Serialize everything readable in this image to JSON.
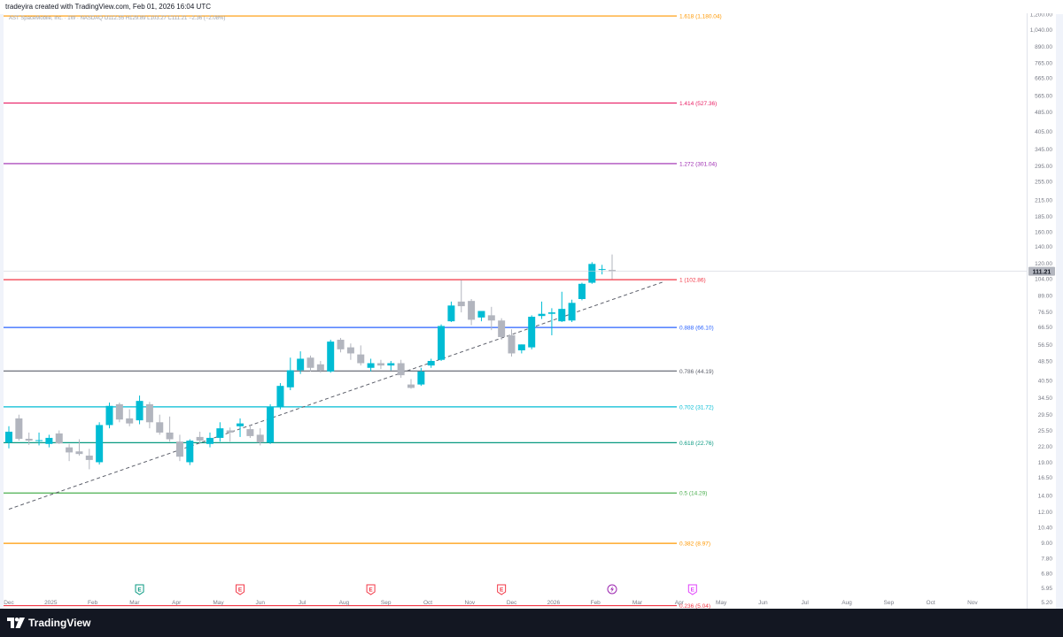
{
  "header": {
    "credit": "tradeyira created with TradingView.com, Feb 01, 2026 16:04 UTC",
    "symbol_line": "AST SpaceMobile, Inc. · 1W · NASDAQ  O112.55  H129.89  L103.27  C111.21  −2.36 (−2.08%)"
  },
  "footer": {
    "brand": "TradingView",
    "logo_icon": "tradingview-logo-icon"
  },
  "chart_data": {
    "type": "candlestick",
    "title": "",
    "y_scale": "log",
    "ylim": [
      4.9,
      1210
    ],
    "y_ticks": [
      "1,200.00",
      "1,040.00",
      "890.00",
      "765.00",
      "665.00",
      "565.00",
      "485.00",
      "405.00",
      "345.00",
      "295.00",
      "255.00",
      "215.00",
      "185.00",
      "160.00",
      "140.00",
      "120.00",
      "104.00",
      "89.00",
      "76.50",
      "66.50",
      "56.50",
      "48.50",
      "40.50",
      "34.50",
      "29.50",
      "25.50",
      "22.00",
      "19.00",
      "16.50",
      "14.00",
      "12.00",
      "10.40",
      "9.00",
      "7.80",
      "6.80",
      "5.95",
      "5.20"
    ],
    "x_ticks": [
      "Dec",
      "2025",
      "Feb",
      "Mar",
      "Apr",
      "May",
      "Jun",
      "Jul",
      "Aug",
      "Sep",
      "Oct",
      "Nov",
      "Dec",
      "2026",
      "Feb",
      "Mar",
      "Apr",
      "May",
      "Jun",
      "Jul",
      "Aug",
      "Sep",
      "Oct",
      "Nov"
    ],
    "last_price": {
      "value": 111.21,
      "label": "111.21"
    },
    "fib_levels": [
      {
        "label": "1.618 (1,180.04)",
        "value": 1180.04,
        "color": "#ff9800"
      },
      {
        "label": "1.414 (527.36)",
        "value": 527.36,
        "color": "#e91e63"
      },
      {
        "label": "1.272 (301.04)",
        "value": 301.04,
        "color": "#9c27b0"
      },
      {
        "label": "1 (102.86)",
        "value": 102.86,
        "color": "#f23645"
      },
      {
        "label": "0.888 (66.10)",
        "value": 66.1,
        "color": "#2962ff"
      },
      {
        "label": "0.786 (44.19)",
        "value": 44.19,
        "color": "#5d606b"
      },
      {
        "label": "0.702 (31.72)",
        "value": 31.72,
        "color": "#00bcd4"
      },
      {
        "label": "0.618 (22.76)",
        "value": 22.76,
        "color": "#089981"
      },
      {
        "label": "0.5 (14.29)",
        "value": 14.29,
        "color": "#4caf50"
      },
      {
        "label": "0.382 (8.97)",
        "value": 8.97,
        "color": "#ff9800"
      },
      {
        "label": "0.236 (5.04)",
        "value": 5.04,
        "color": "#f23645"
      }
    ],
    "trendline": {
      "from": {
        "week": 0,
        "value": 12.3
      },
      "to": {
        "week": 65,
        "value": 100.5
      },
      "style": "dashed"
    },
    "earnings_markers": [
      {
        "week": 13,
        "kind": "E",
        "color": "#089981"
      },
      {
        "week": 23,
        "kind": "E",
        "color": "#f23645"
      },
      {
        "week": 36,
        "kind": "E",
        "color": "#f23645"
      },
      {
        "week": 49,
        "kind": "E",
        "color": "#f23645"
      },
      {
        "week": 60,
        "kind": "lightning",
        "color": "#9c27b0"
      },
      {
        "week": 68,
        "kind": "E",
        "color": "#e040fb"
      }
    ],
    "up_color": "#00bcd4",
    "down_color": "#b2b5be",
    "candles": [
      {
        "o": 22.8,
        "h": 26.5,
        "l": 21.6,
        "c": 25.2
      },
      {
        "o": 28.5,
        "h": 29.5,
        "l": 23.2,
        "c": 23.6
      },
      {
        "o": 23.6,
        "h": 25.0,
        "l": 22.3,
        "c": 23.2
      },
      {
        "o": 23.3,
        "h": 25.0,
        "l": 22.2,
        "c": 23.3
      },
      {
        "o": 22.5,
        "h": 24.5,
        "l": 21.8,
        "c": 23.8
      },
      {
        "o": 24.8,
        "h": 25.5,
        "l": 22.5,
        "c": 22.6
      },
      {
        "o": 21.8,
        "h": 22.5,
        "l": 19.2,
        "c": 20.8
      },
      {
        "o": 21.0,
        "h": 23.5,
        "l": 20.2,
        "c": 20.5
      },
      {
        "o": 20.2,
        "h": 21.5,
        "l": 17.8,
        "c": 19.4
      },
      {
        "o": 19.0,
        "h": 27.5,
        "l": 18.6,
        "c": 26.8
      },
      {
        "o": 26.8,
        "h": 33.0,
        "l": 26.0,
        "c": 32.0
      },
      {
        "o": 32.5,
        "h": 33.0,
        "l": 27.5,
        "c": 28.2
      },
      {
        "o": 28.5,
        "h": 31.0,
        "l": 26.5,
        "c": 27.2
      },
      {
        "o": 28.0,
        "h": 35.2,
        "l": 27.0,
        "c": 33.5
      },
      {
        "o": 32.5,
        "h": 33.2,
        "l": 26.0,
        "c": 27.5
      },
      {
        "o": 27.5,
        "h": 29.5,
        "l": 24.5,
        "c": 25.0
      },
      {
        "o": 25.0,
        "h": 29.0,
        "l": 23.0,
        "c": 23.5
      },
      {
        "o": 23.0,
        "h": 24.5,
        "l": 19.2,
        "c": 20.0
      },
      {
        "o": 19.0,
        "h": 23.5,
        "l": 18.5,
        "c": 23.2
      },
      {
        "o": 24.0,
        "h": 25.2,
        "l": 22.5,
        "c": 23.2
      },
      {
        "o": 22.5,
        "h": 25.0,
        "l": 21.8,
        "c": 23.8
      },
      {
        "o": 23.8,
        "h": 27.5,
        "l": 23.0,
        "c": 26.0
      },
      {
        "o": 25.5,
        "h": 26.2,
        "l": 23.0,
        "c": 25.0
      },
      {
        "o": 26.5,
        "h": 28.5,
        "l": 24.0,
        "c": 27.2
      },
      {
        "o": 25.8,
        "h": 26.8,
        "l": 23.8,
        "c": 24.2
      },
      {
        "o": 24.5,
        "h": 26.0,
        "l": 22.2,
        "c": 22.8
      },
      {
        "o": 22.8,
        "h": 32.5,
        "l": 22.5,
        "c": 31.8
      },
      {
        "o": 31.8,
        "h": 39.5,
        "l": 31.0,
        "c": 38.5
      },
      {
        "o": 38.0,
        "h": 50.0,
        "l": 37.0,
        "c": 44.5
      },
      {
        "o": 44.5,
        "h": 53.0,
        "l": 43.0,
        "c": 49.5
      },
      {
        "o": 50.0,
        "h": 51.0,
        "l": 44.0,
        "c": 45.5
      },
      {
        "o": 47.0,
        "h": 48.5,
        "l": 43.5,
        "c": 44.5
      },
      {
        "o": 44.0,
        "h": 59.0,
        "l": 43.5,
        "c": 58.0
      },
      {
        "o": 59.0,
        "h": 60.0,
        "l": 52.5,
        "c": 54.0
      },
      {
        "o": 55.0,
        "h": 57.0,
        "l": 49.0,
        "c": 52.0
      },
      {
        "o": 51.5,
        "h": 56.0,
        "l": 46.5,
        "c": 47.5
      },
      {
        "o": 45.5,
        "h": 49.5,
        "l": 44.0,
        "c": 47.5
      },
      {
        "o": 47.5,
        "h": 49.0,
        "l": 45.0,
        "c": 46.5
      },
      {
        "o": 46.5,
        "h": 48.5,
        "l": 44.5,
        "c": 47.5
      },
      {
        "o": 47.5,
        "h": 49.0,
        "l": 41.5,
        "c": 42.5
      },
      {
        "o": 39.0,
        "h": 41.0,
        "l": 37.5,
        "c": 37.8
      },
      {
        "o": 39.0,
        "h": 45.5,
        "l": 38.5,
        "c": 44.0
      },
      {
        "o": 46.5,
        "h": 49.5,
        "l": 45.5,
        "c": 48.5
      },
      {
        "o": 49.0,
        "h": 68.0,
        "l": 48.5,
        "c": 67.0
      },
      {
        "o": 70.0,
        "h": 84.0,
        "l": 69.5,
        "c": 81.0
      },
      {
        "o": 84.0,
        "h": 102.5,
        "l": 76.0,
        "c": 80.5
      },
      {
        "o": 84.5,
        "h": 86.0,
        "l": 67.5,
        "c": 71.0
      },
      {
        "o": 72.5,
        "h": 77.0,
        "l": 70.0,
        "c": 77.0
      },
      {
        "o": 74.0,
        "h": 80.0,
        "l": 64.5,
        "c": 70.5
      },
      {
        "o": 70.5,
        "h": 72.0,
        "l": 59.0,
        "c": 60.5
      },
      {
        "o": 61.5,
        "h": 65.0,
        "l": 50.5,
        "c": 52.0
      },
      {
        "o": 53.5,
        "h": 56.5,
        "l": 52.0,
        "c": 56.5
      },
      {
        "o": 55.0,
        "h": 74.0,
        "l": 54.0,
        "c": 73.0
      },
      {
        "o": 73.5,
        "h": 84.0,
        "l": 71.5,
        "c": 75.0
      },
      {
        "o": 75.0,
        "h": 79.0,
        "l": 61.5,
        "c": 76.0
      },
      {
        "o": 70.0,
        "h": 92.0,
        "l": 69.5,
        "c": 78.5
      },
      {
        "o": 70.5,
        "h": 85.5,
        "l": 69.5,
        "c": 83.0
      },
      {
        "o": 86.0,
        "h": 100.0,
        "l": 85.0,
        "c": 99.0
      },
      {
        "o": 100.0,
        "h": 121.0,
        "l": 99.0,
        "c": 119.0
      },
      {
        "o": 113.0,
        "h": 118.0,
        "l": 108.0,
        "c": 113.5
      },
      {
        "o": 112.55,
        "h": 129.89,
        "l": 103.27,
        "c": 111.21
      }
    ]
  }
}
